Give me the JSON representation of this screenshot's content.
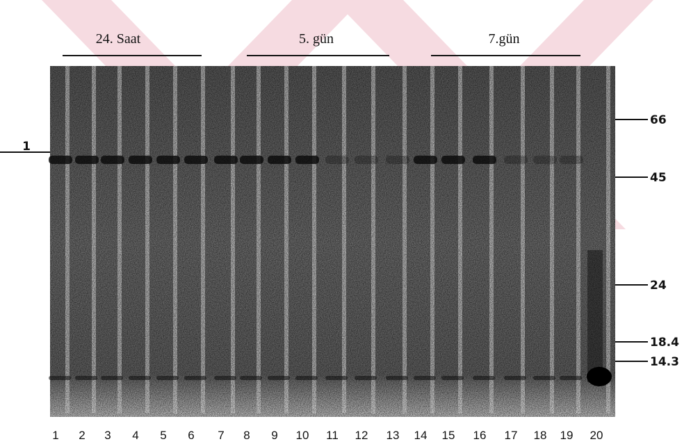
{
  "groups": [
    {
      "label": "24. Saat"
    },
    {
      "label": "5. gün"
    },
    {
      "label": "7.gün"
    }
  ],
  "left_marker": "1",
  "size_markers": [
    "66",
    "45",
    "24",
    "18.4",
    "14.3"
  ],
  "lanes": [
    "1",
    "2",
    "3",
    "4",
    "5",
    "6",
    "7",
    "8",
    "9",
    "10",
    "11",
    "12",
    "13",
    "14",
    "15",
    "16",
    "17",
    "18",
    "19",
    "20"
  ]
}
